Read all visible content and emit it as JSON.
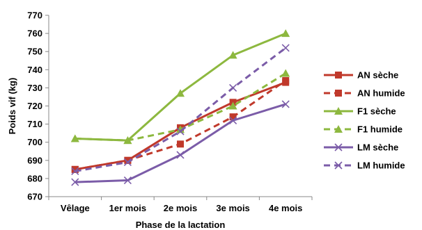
{
  "chart_data": {
    "type": "line",
    "title": "",
    "xlabel": "Phase de la lactation",
    "ylabel": "Poids vif (kg)",
    "categories": [
      "Vêlage",
      "1er mois",
      "2e mois",
      "3e mois",
      "4e mois"
    ],
    "yticks": [
      "670",
      "680",
      "690",
      "700",
      "710",
      "720",
      "730",
      "740",
      "750",
      "760",
      "770"
    ],
    "ylim": [
      670,
      770
    ],
    "grid": false,
    "legend_position": "right",
    "series": [
      {
        "name": "AN sèche",
        "values": [
          685,
          690,
          708,
          722,
          733
        ],
        "color": "#C0392B",
        "dash": "solid",
        "marker": "square"
      },
      {
        "name": "AN humide",
        "values": [
          685,
          690,
          699,
          714,
          734
        ],
        "color": "#C0392B",
        "dash": "dashed",
        "marker": "square"
      },
      {
        "name": "F1 sèche",
        "values": [
          702,
          701,
          727,
          748,
          760
        ],
        "color": "#8DB83F",
        "dash": "solid",
        "marker": "triangle"
      },
      {
        "name": "F1 humide",
        "values": [
          702,
          701,
          707,
          720,
          738
        ],
        "color": "#8DB83F",
        "dash": "dashed",
        "marker": "triangle"
      },
      {
        "name": "LM sèche",
        "values": [
          678,
          679,
          693,
          712,
          721
        ],
        "color": "#7B5CA8",
        "dash": "solid",
        "marker": "x"
      },
      {
        "name": "LM humide",
        "values": [
          684,
          689,
          706,
          730,
          752
        ],
        "color": "#7B5CA8",
        "dash": "dashed",
        "marker": "x"
      }
    ]
  }
}
